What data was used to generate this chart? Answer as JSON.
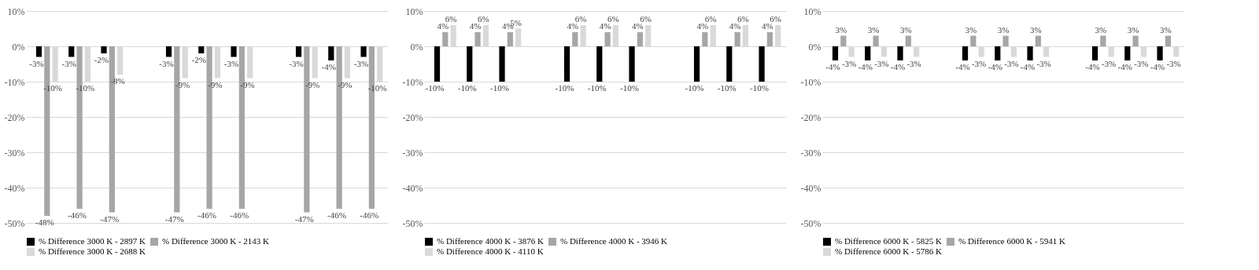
{
  "chart_data": [
    {
      "type": "bar",
      "categories": [
        null,
        null,
        null,
        null,
        null,
        null,
        null,
        null,
        null,
        null,
        null
      ],
      "ylim": [
        -50,
        10
      ],
      "yticks": [
        {
          "value": -50,
          "label": "-50%"
        },
        {
          "value": -40,
          "label": "-40%"
        },
        {
          "value": -30,
          "label": "-30%"
        },
        {
          "value": -20,
          "label": "-20%"
        },
        {
          "value": -10,
          "label": "-10%"
        },
        {
          "value": 0,
          "label": "0%"
        },
        {
          "value": 10,
          "label": "10%"
        }
      ],
      "grid": "y",
      "legend": "bottom",
      "tick_labels": "y",
      "series": [
        {
          "name": "% Difference 3000 K - 2897 K",
          "color": "#000000",
          "values": [
            -3,
            -3,
            -2,
            null,
            -3,
            -2,
            -3,
            null,
            -3,
            -4,
            -3
          ],
          "value_labels": [
            "-3%",
            "-3%",
            "-2%",
            null,
            "-3%",
            "-2%",
            "-3%",
            null,
            "-3%",
            "-4%",
            "-3%"
          ]
        },
        {
          "name": "% Difference 3000 K - 2143 K",
          "color": "#a6a6a6",
          "values": [
            -48,
            -46,
            -47,
            null,
            -47,
            -46,
            -46,
            null,
            -47,
            -46,
            -46
          ],
          "value_labels": [
            "-48%",
            "-46%",
            "-47%",
            null,
            "-47%",
            "-46%",
            "-46%",
            null,
            "-47%",
            "-46%",
            "-46%"
          ]
        },
        {
          "name": "% Difference 3000 K - 2688 K",
          "color": "#d9d9d9",
          "values": [
            -10,
            -10,
            -8,
            null,
            -9,
            -9,
            -9,
            null,
            -9,
            -9,
            -10
          ],
          "value_labels": [
            "-10%",
            "-10%",
            "-8%",
            null,
            "-9%",
            "-9%",
            "-9%",
            null,
            "-9%",
            "-9%",
            "-10%"
          ]
        }
      ]
    },
    {
      "type": "bar",
      "categories": [
        null,
        null,
        null,
        null,
        null,
        null,
        null,
        null,
        null,
        null,
        null
      ],
      "ylim": [
        -50,
        10
      ],
      "yticks": [
        {
          "value": -50,
          "label": "-50%"
        },
        {
          "value": -40,
          "label": "-40%"
        },
        {
          "value": -30,
          "label": "-30%"
        },
        {
          "value": -20,
          "label": "-20%"
        },
        {
          "value": -10,
          "label": "-10%"
        },
        {
          "value": 0,
          "label": "0%"
        },
        {
          "value": 10,
          "label": "10%"
        }
      ],
      "grid": "y",
      "legend": "bottom",
      "tick_labels": "y",
      "series": [
        {
          "name": "% Difference 4000 K - 3876 K",
          "color": "#000000",
          "values": [
            -10,
            -10,
            -10,
            null,
            -10,
            -10,
            -10,
            null,
            -10,
            -10,
            -10
          ],
          "value_labels": [
            "-10%",
            "-10%",
            "-10%",
            null,
            "-10%",
            "-10%",
            "-10%",
            null,
            "-10%",
            "-10%",
            "-10%"
          ]
        },
        {
          "name": "% Difference 4000 K - 3946 K",
          "color": "#a6a6a6",
          "values": [
            4,
            4,
            4,
            null,
            4,
            4,
            4,
            null,
            4,
            4,
            4
          ],
          "value_labels": [
            "4%",
            "4%",
            "4%",
            null,
            "4%",
            "4%",
            "4%",
            null,
            "4%",
            "4%",
            "4%"
          ]
        },
        {
          "name": "% Difference 4000 K - 4110 K",
          "color": "#d9d9d9",
          "values": [
            6,
            6,
            5,
            null,
            6,
            6,
            6,
            null,
            6,
            6,
            6
          ],
          "value_labels": [
            "6%",
            "6%",
            "5%",
            null,
            "6%",
            "6%",
            "6%",
            null,
            "6%",
            "6%",
            "6%"
          ]
        }
      ]
    },
    {
      "type": "bar",
      "categories": [
        null,
        null,
        null,
        null,
        null,
        null,
        null,
        null,
        null,
        null,
        null
      ],
      "ylim": [
        -50,
        10
      ],
      "yticks": [
        {
          "value": -50,
          "label": "-50%"
        },
        {
          "value": -40,
          "label": "-40%"
        },
        {
          "value": -30,
          "label": "-30%"
        },
        {
          "value": -20,
          "label": "-20%"
        },
        {
          "value": -10,
          "label": "-10%"
        },
        {
          "value": 0,
          "label": "0%"
        },
        {
          "value": 10,
          "label": "10%"
        }
      ],
      "grid": "y",
      "legend": "bottom",
      "tick_labels": "y",
      "series": [
        {
          "name": "% Difference 6000 K - 5825 K",
          "color": "#000000",
          "values": [
            -4,
            -4,
            -4,
            null,
            -4,
            -4,
            -4,
            null,
            -4,
            -4,
            -4
          ],
          "value_labels": [
            "-4%",
            "-4%",
            "-4%",
            null,
            "-4%",
            "-4%",
            "-4%",
            null,
            "-4%",
            "-4%",
            "-4%"
          ]
        },
        {
          "name": "% Difference 6000 K - 5941 K",
          "color": "#a6a6a6",
          "values": [
            3,
            3,
            3,
            null,
            3,
            3,
            3,
            null,
            3,
            3,
            3
          ],
          "value_labels": [
            "3%",
            "3%",
            "3%",
            null,
            "3%",
            "3%",
            "3%",
            null,
            "3%",
            "3%",
            "3%"
          ]
        },
        {
          "name": "% Difference 6000 K - 5786 K",
          "color": "#d9d9d9",
          "values": [
            -3,
            -3,
            -3,
            null,
            -3,
            -3,
            -3,
            null,
            -3,
            -3,
            -3
          ],
          "value_labels": [
            "-3%",
            "-3%",
            "-3%",
            null,
            "-3%",
            "-3%",
            "-3%",
            null,
            "-3%",
            "-3%",
            "-3%"
          ]
        }
      ]
    }
  ]
}
